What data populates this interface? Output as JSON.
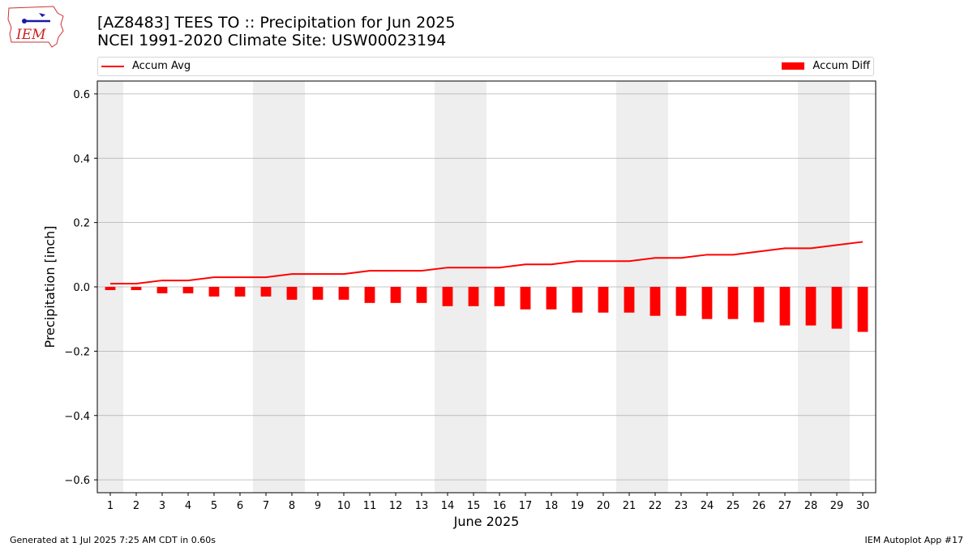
{
  "logo": {
    "text": "IEM"
  },
  "title": {
    "line1": "[AZ8483] TEES TO :: Precipitation for Jun 2025",
    "line2": "NCEI 1991-2020 Climate Site: USW00023194"
  },
  "legend": {
    "avg_label": "Accum Avg",
    "diff_label": "Accum Diff"
  },
  "footer": {
    "left": "Generated at 1 Jul 2025 7:25 AM CDT in 0.60s",
    "right": "IEM Autoplot App #17"
  },
  "colors": {
    "series": "#ff0000",
    "weekend_shade": "#eeeeee",
    "grid": "#b0b0b0"
  },
  "chart_data": {
    "type": "bar",
    "xlabel": "June 2025",
    "ylabel": "Precipitation [inch]",
    "ylim": [
      -0.64,
      0.64
    ],
    "yticks": [
      -0.6,
      -0.4,
      -0.2,
      0.0,
      0.2,
      0.4,
      0.6
    ],
    "ytick_labels": [
      "−0.6",
      "−0.4",
      "−0.2",
      "0.0",
      "0.2",
      "0.4",
      "0.6"
    ],
    "grid": "horizontal",
    "legend_placement": "top",
    "x": [
      1,
      2,
      3,
      4,
      5,
      6,
      7,
      8,
      9,
      10,
      11,
      12,
      13,
      14,
      15,
      16,
      17,
      18,
      19,
      20,
      21,
      22,
      23,
      24,
      25,
      26,
      27,
      28,
      29,
      30
    ],
    "shaded_days": [
      1,
      7,
      8,
      14,
      15,
      21,
      22,
      28,
      29
    ],
    "series": [
      {
        "name": "Accum Avg",
        "kind": "line",
        "values": [
          0.01,
          0.01,
          0.02,
          0.02,
          0.03,
          0.03,
          0.03,
          0.04,
          0.04,
          0.04,
          0.05,
          0.05,
          0.05,
          0.06,
          0.06,
          0.06,
          0.07,
          0.07,
          0.08,
          0.08,
          0.08,
          0.09,
          0.09,
          0.1,
          0.1,
          0.11,
          0.12,
          0.12,
          0.13,
          0.14
        ]
      },
      {
        "name": "Accum Diff",
        "kind": "bar",
        "values": [
          -0.01,
          -0.01,
          -0.02,
          -0.02,
          -0.03,
          -0.03,
          -0.03,
          -0.04,
          -0.04,
          -0.04,
          -0.05,
          -0.05,
          -0.05,
          -0.06,
          -0.06,
          -0.06,
          -0.07,
          -0.07,
          -0.08,
          -0.08,
          -0.08,
          -0.09,
          -0.09,
          -0.1,
          -0.1,
          -0.11,
          -0.12,
          -0.12,
          -0.13,
          -0.14
        ]
      }
    ]
  }
}
